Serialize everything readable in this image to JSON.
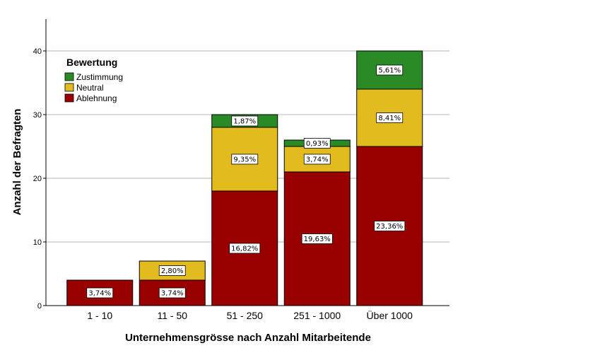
{
  "chart_data": {
    "type": "bar",
    "stacked": true,
    "title": "",
    "xlabel": "Unternehmensgrösse nach Anzahl Mitarbeitende",
    "ylabel": "Anzahl der Befragten",
    "categories": [
      "1 - 10",
      "11 - 50",
      "51 - 250",
      "251 - 1000",
      "Über 1000"
    ],
    "ylim": [
      0,
      45
    ],
    "yticks": [
      0,
      10,
      20,
      30,
      40
    ],
    "grid": true,
    "legend": {
      "title": "Bewertung",
      "position": "top-left"
    },
    "series": [
      {
        "name": "Ablehnung",
        "color": "#990000",
        "values": [
          4,
          4,
          18,
          21,
          25
        ],
        "labels": [
          "3,74%",
          "3,74%",
          "16,82%",
          "19,63%",
          "23,36%"
        ]
      },
      {
        "name": "Neutral",
        "color": "#e2bc1f",
        "values": [
          0,
          3,
          10,
          4,
          9
        ],
        "labels": [
          "",
          "2,80%",
          "9,35%",
          "3,74%",
          "8,41%"
        ]
      },
      {
        "name": "Zustimmung",
        "color": "#2a8a26",
        "values": [
          0,
          0,
          2,
          1,
          6
        ],
        "labels": [
          "",
          "",
          "1,87%",
          "0,93%",
          "5,61%"
        ]
      }
    ]
  }
}
